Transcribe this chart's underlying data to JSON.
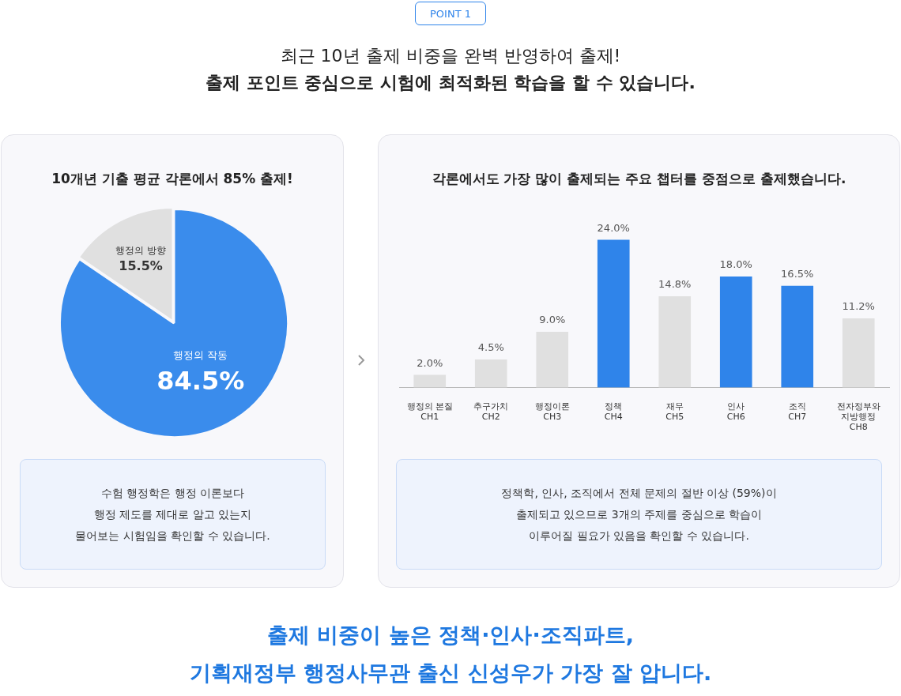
{
  "chart_data": [
    {
      "type": "pie",
      "title": "10개년 기출 평균 각론에서 85% 출제!",
      "categories": [
        "행정의 작동",
        "행정의 방향"
      ],
      "values": [
        84.5,
        15.5
      ],
      "colors": [
        "#3a8cec",
        "#e0e0e0"
      ],
      "value_labels": [
        "84.5%",
        "15.5%"
      ],
      "legend": false,
      "annotations": [
        "POINT 1",
        "최근 10년 출제 비중을 완벽 반영하여 출제!",
        "출제 포인트 중심으로 시험에 최적화된 학습을 할 수 있습니다.",
        "수험 행정학은 행정 이론보다\n행정 제도를 제대로 알고 있는지\n물어보는 시험임을 확인할 수 있습니다."
      ]
    },
    {
      "type": "bar",
      "title": "각론에서도 가장 많이 출제되는 주요 챕터를 중점으로 출제했습니다.",
      "categories": [
        "행정의 본질\nCH1",
        "추구가치\nCH2",
        "행정이론\nCH3",
        "정책\nCH4",
        "재무\nCH5",
        "인사\nCH6",
        "조직\nCH7",
        "전자정부와\n지방행정\nCH8"
      ],
      "values": [
        2.0,
        4.5,
        9.0,
        24.0,
        14.8,
        18.0,
        16.5,
        11.2
      ],
      "colors": [
        "#e0e0e0",
        "#e0e0e0",
        "#e0e0e0",
        "#2f84ea",
        "#e0e0e0",
        "#2f84ea",
        "#2f84ea",
        "#e0e0e0"
      ],
      "value_labels": [
        "2.0%",
        "4.5%",
        "9.0%",
        "24.0%",
        "14.8%",
        "18.0%",
        "16.5%",
        "11.2%"
      ],
      "legend": false,
      "grid": false,
      "annotations": [
        "정책학, 인사, 조직에서 전체 문제의 절반 이상 (59%)이\n출제되고 있으므로 3개의 주제를 중심으로 학습이\n이루어질 필요가 있음을 확인할 수 있습니다.",
        "출제 비중이 높은 정책·인사·조직파트,",
        "기획재정부 행정사무관 출신 신성우가 가장 잘 압니다."
      ]
    }
  ]
}
